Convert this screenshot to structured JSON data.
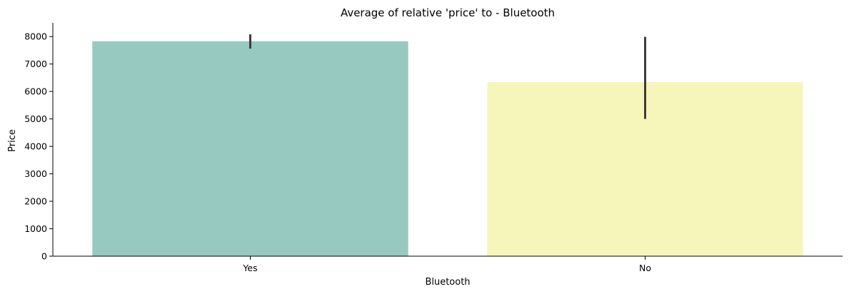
{
  "chart_data": {
    "type": "bar",
    "title": "Average of relative 'price' to - Bluetooth",
    "xlabel": "Bluetooth",
    "ylabel": "Price",
    "categories": [
      "Yes",
      "No"
    ],
    "values": [
      7830,
      6340
    ],
    "errors": [
      [
        7560,
        8080
      ],
      [
        5000,
        7990
      ]
    ],
    "colors": [
      "#98c9c0",
      "#f6f6bb"
    ],
    "error_color": "#3d3d3d",
    "ylim": [
      0,
      8500
    ],
    "yticks": [
      0,
      1000,
      2000,
      3000,
      4000,
      5000,
      6000,
      7000,
      8000
    ],
    "grid": false,
    "legend": "none"
  }
}
